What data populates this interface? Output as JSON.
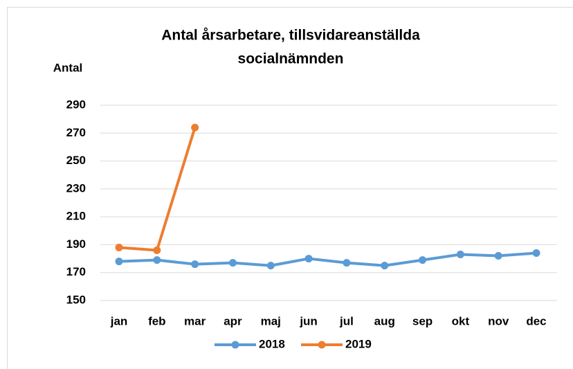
{
  "chart_data": {
    "type": "line",
    "title": [
      "Antal årsarbetare, tillsvidareanställda",
      "socialnämnden"
    ],
    "y_label": "Antal",
    "categories": [
      "jan",
      "feb",
      "mar",
      "apr",
      "maj",
      "jun",
      "jul",
      "aug",
      "sep",
      "okt",
      "nov",
      "dec"
    ],
    "series": [
      {
        "name": "2018",
        "color": "#5b9bd5",
        "values": [
          178,
          179,
          176,
          177,
          175,
          180,
          177,
          175,
          179,
          183,
          182,
          184
        ]
      },
      {
        "name": "2019",
        "color": "#ed7d31",
        "values": [
          188,
          186,
          274,
          null,
          null,
          null,
          null,
          null,
          null,
          null,
          null,
          null
        ]
      }
    ],
    "ylim": [
      150,
      290
    ],
    "yticks": [
      150,
      170,
      190,
      210,
      230,
      250,
      270,
      290
    ],
    "grid": true,
    "legend": "bottom"
  }
}
